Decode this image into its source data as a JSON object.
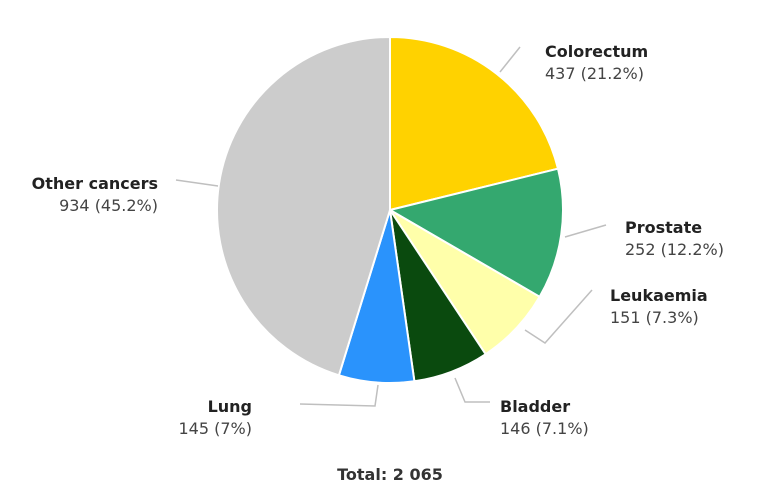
{
  "chart_data": {
    "type": "pie",
    "slices": [
      {
        "name": "Colorectum",
        "value": 437,
        "value_text": "437 (21.2%)",
        "color": "#FFD200"
      },
      {
        "name": "Prostate",
        "value": 252,
        "value_text": "252 (12.2%)",
        "color": "#34A86F"
      },
      {
        "name": "Leukaemia",
        "value": 151,
        "value_text": "151 (7.3%)",
        "color": "#FFFFAA"
      },
      {
        "name": "Bladder",
        "value": 146,
        "value_text": "146 (7.1%)",
        "color": "#0A4A0E"
      },
      {
        "name": "Lung",
        "value": 145,
        "value_text": "145 (7%)",
        "color": "#2A93FC"
      },
      {
        "name": "Other cancers",
        "value": 934,
        "value_text": "934 (45.2%)",
        "color": "#CCCCCC"
      }
    ],
    "total_label": "Total: 2 065"
  }
}
